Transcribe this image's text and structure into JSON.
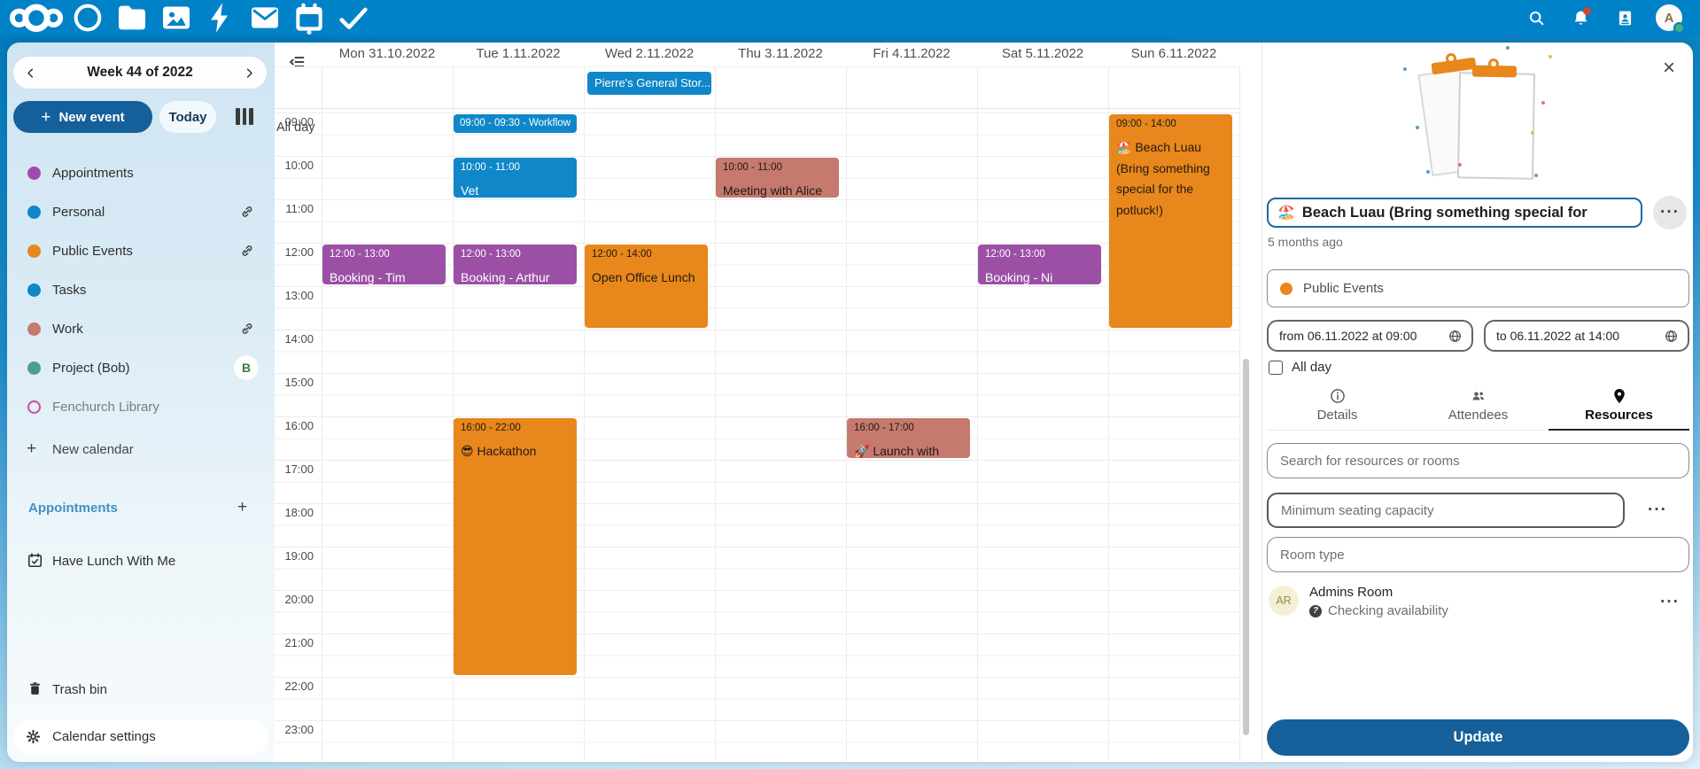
{
  "colors": {
    "topbar": "#0082c9",
    "primary_dark": "#15609a",
    "event_blue": "#0f87c9",
    "event_purple": "#9b50a5",
    "event_orange": "#e8871c",
    "event_salmon": "#c57a6d",
    "notification_badge": "#d4452c",
    "online_status": "#40b37c"
  },
  "topbar": {
    "logo_icon": "nextcloud-logo",
    "apps": [
      {
        "name": "dashboard",
        "icon": "circle",
        "active": false
      },
      {
        "name": "files",
        "icon": "folder",
        "active": false
      },
      {
        "name": "photos",
        "icon": "image",
        "active": false
      },
      {
        "name": "activity",
        "icon": "bolt",
        "active": false
      },
      {
        "name": "mail",
        "icon": "envelope",
        "active": false
      },
      {
        "name": "calendar",
        "icon": "calendar",
        "active": true
      },
      {
        "name": "tasks",
        "icon": "check",
        "active": false
      }
    ],
    "search_icon": "magnifier",
    "notifications_icon": "bell",
    "contacts_icon": "contacts",
    "avatar_initial": "A"
  },
  "sidebar": {
    "week_label": "Week 44 of 2022",
    "prev_icon": "chevron-left",
    "next_icon": "chevron-right",
    "new_event_label": "New event",
    "today_label": "Today",
    "view_icon": "week-columns",
    "calendars": [
      {
        "label": "Appointments",
        "color": "#a24bad",
        "link": false
      },
      {
        "label": "Personal",
        "color": "#0f87c9",
        "link": true
      },
      {
        "label": "Public Events",
        "color": "#e8871c",
        "link": true
      },
      {
        "label": "Tasks",
        "color": "#0f87c9",
        "link": false
      },
      {
        "label": "Work",
        "color": "#c57a6d",
        "link": true
      },
      {
        "label": "Project (Bob)",
        "color": "#4e9d92",
        "badge": "B"
      },
      {
        "label": "Fenchurch Library",
        "color": "#c3509c",
        "outlined": true,
        "muted": true
      }
    ],
    "new_calendar_label": "New calendar",
    "appointments_header": "Appointments",
    "appointment_items": [
      {
        "label": "Have Lunch With Me",
        "icon": "calendar-check"
      }
    ],
    "trash_label": "Trash bin",
    "trash_icon": "trash",
    "settings_label": "Calendar settings",
    "settings_icon": "gear"
  },
  "calendar": {
    "toggle_icon": "collapse-list",
    "all_day_label": "All day",
    "days": [
      "Mon 31.10.2022",
      "Tue 1.11.2022",
      "Wed 2.11.2022",
      "Thu 3.11.2022",
      "Fri 4.11.2022",
      "Sat 5.11.2022",
      "Sun 6.11.2022"
    ],
    "hours": [
      "09:00",
      "10:00",
      "11:00",
      "12:00",
      "13:00",
      "14:00",
      "15:00",
      "16:00",
      "17:00",
      "18:00",
      "19:00",
      "20:00",
      "21:00",
      "22:00",
      "23:00"
    ],
    "all_day_events": [
      {
        "day": 2,
        "label": "Pierre's General Stor...",
        "color": "#0f87c9",
        "text": "#ffffff"
      }
    ],
    "events": [
      {
        "day": 1,
        "start": 9,
        "end": 9.5,
        "time": "09:00 - 09:30",
        "title": "Workflow",
        "inline": true,
        "color": "#0f87c9",
        "text": "#ffffff"
      },
      {
        "day": 1,
        "start": 10,
        "end": 11,
        "time": "10:00 - 11:00",
        "title": "Vet",
        "color": "#0f87c9",
        "text": "#ffffff"
      },
      {
        "day": 3,
        "start": 10,
        "end": 11,
        "time": "10:00 - 11:00",
        "title": "Meeting with Alice",
        "color": "#c57a6d",
        "text": "#231715"
      },
      {
        "day": 0,
        "start": 12,
        "end": 13,
        "time": "12:00 - 13:00",
        "title": "Booking - Tim (Wizard)",
        "color": "#9b50a5",
        "text": "#ffffff"
      },
      {
        "day": 1,
        "start": 12,
        "end": 13,
        "time": "12:00 - 13:00",
        "title": "Booking - Arthur Dent",
        "color": "#9b50a5",
        "text": "#ffffff"
      },
      {
        "day": 2,
        "start": 12,
        "end": 14,
        "time": "12:00 - 14:00",
        "title": "Open Office Lunch",
        "color": "#e8871c",
        "text": "#231a11"
      },
      {
        "day": 5,
        "start": 12,
        "end": 13,
        "time": "12:00 - 13:00",
        "title": "Booking - Ni (Knights",
        "color": "#9b50a5",
        "text": "#ffffff"
      },
      {
        "day": 6,
        "start": 9,
        "end": 14,
        "time": "09:00 - 14:00",
        "title": "🏖️ Beach Luau (Bring something special for the potluck!)",
        "color": "#e8871c",
        "text": "#231a11"
      },
      {
        "day": 1,
        "start": 16,
        "end": 22,
        "time": "16:00 - 22:00",
        "title": "😎 Hackathon",
        "color": "#e8871c",
        "text": "#231a11"
      },
      {
        "day": 4,
        "start": 16,
        "end": 17,
        "time": "16:00 - 17:00",
        "title": "🚀 Launch with Elon",
        "color": "#c57a6d",
        "text": "#231715"
      }
    ]
  },
  "panel": {
    "close_icon": "close",
    "illustration": "clipboards",
    "title_emoji": "🏖️",
    "title_value": "Beach Luau (Bring something special for",
    "more_icon": "ellipsis",
    "modified": "5 months ago",
    "calendar_select": {
      "label": "Public Events",
      "color": "#e8871c"
    },
    "from_value": "from 06.11.2022 at 09:00",
    "to_value": "to 06.11.2022 at 14:00",
    "timezone_icon": "globe",
    "allday_label": "All day",
    "allday_checked": false,
    "tabs": [
      {
        "label": "Details",
        "icon": "info",
        "active": false
      },
      {
        "label": "Attendees",
        "icon": "people",
        "active": false
      },
      {
        "label": "Resources",
        "icon": "pin",
        "active": true
      }
    ],
    "search_placeholder": "Search for resources or rooms",
    "seating_placeholder": "Minimum seating capacity",
    "room_type_placeholder": "Room type",
    "resource": {
      "initials": "AR",
      "name": "Admins Room",
      "status_icon": "question",
      "status": "Checking availability",
      "more_icon": "ellipsis"
    },
    "update_label": "Update"
  }
}
